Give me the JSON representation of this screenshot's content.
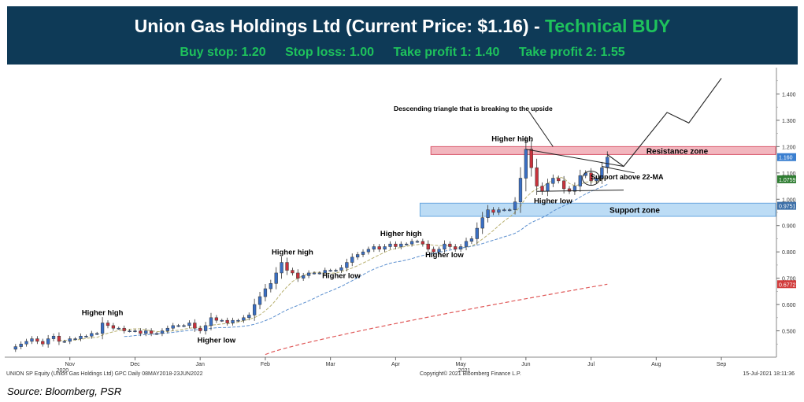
{
  "header": {
    "title_main": "Union Gas Holdings Ltd (Current Price: $1.16) - ",
    "title_signal": "Technical BUY",
    "buy_stop": "Buy stop: 1.20",
    "stop_loss": "Stop loss: 1.00",
    "take_profit_1": "Take profit 1: 1.40",
    "take_profit_2": "Take profit 2: 1.55"
  },
  "source": "Source: Bloomberg, PSR",
  "chart_data": {
    "type": "candlestick",
    "title": "",
    "ylim": [
      0.4,
      1.5
    ],
    "yticks": [
      {
        "v": 0.5,
        "label": "0.500"
      },
      {
        "v": 0.6,
        "label": "0.600"
      },
      {
        "v": 0.7,
        "label": "0.700"
      },
      {
        "v": 0.8,
        "label": "0.800"
      },
      {
        "v": 0.9,
        "label": "0.900"
      },
      {
        "v": 1.0,
        "label": "1.000"
      },
      {
        "v": 1.1,
        "label": "1.100"
      },
      {
        "v": 1.2,
        "label": "1.200"
      },
      {
        "v": 1.3,
        "label": "1.300"
      },
      {
        "v": 1.4,
        "label": "1.400"
      }
    ],
    "xticks": [
      {
        "t": 10,
        "label": "Nov"
      },
      {
        "t": 22,
        "label": "Dec"
      },
      {
        "t": 34,
        "label": "Jan"
      },
      {
        "t": 46,
        "label": "Feb"
      },
      {
        "t": 58,
        "label": "Mar"
      },
      {
        "t": 70,
        "label": "Apr"
      },
      {
        "t": 82,
        "label": "May"
      },
      {
        "t": 94,
        "label": "Jun"
      },
      {
        "t": 106,
        "label": "Jul"
      },
      {
        "t": 118,
        "label": "Aug"
      },
      {
        "t": 130,
        "label": "Sep"
      }
    ],
    "year_labels": [
      {
        "t": 13,
        "label": "2020"
      },
      {
        "t": 87,
        "label": "2021"
      }
    ],
    "x_range": [
      -2,
      140
    ],
    "closes": [
      0.44,
      0.45,
      0.46,
      0.47,
      0.46,
      0.45,
      0.47,
      0.48,
      0.46,
      0.46,
      0.47,
      0.47,
      0.48,
      0.48,
      0.49,
      0.49,
      0.53,
      0.52,
      0.51,
      0.51,
      0.5,
      0.5,
      0.5,
      0.49,
      0.5,
      0.49,
      0.49,
      0.5,
      0.51,
      0.52,
      0.52,
      0.52,
      0.53,
      0.51,
      0.5,
      0.52,
      0.55,
      0.54,
      0.54,
      0.53,
      0.54,
      0.54,
      0.55,
      0.56,
      0.6,
      0.63,
      0.66,
      0.68,
      0.72,
      0.76,
      0.73,
      0.72,
      0.7,
      0.71,
      0.72,
      0.72,
      0.72,
      0.73,
      0.73,
      0.73,
      0.74,
      0.76,
      0.78,
      0.79,
      0.8,
      0.81,
      0.82,
      0.81,
      0.82,
      0.83,
      0.82,
      0.83,
      0.83,
      0.84,
      0.84,
      0.83,
      0.81,
      0.8,
      0.81,
      0.83,
      0.82,
      0.81,
      0.82,
      0.84,
      0.85,
      0.89,
      0.93,
      0.96,
      0.95,
      0.96,
      0.96,
      0.96,
      0.99,
      1.08,
      1.19,
      1.12,
      1.05,
      1.03,
      1.06,
      1.08,
      1.07,
      1.04,
      1.03,
      1.05,
      1.09,
      1.1,
      1.07,
      1.08,
      1.12,
      1.16
    ],
    "support_zone": {
      "low": 0.935,
      "high": 0.985,
      "label": "Support zone"
    },
    "resistance_zone": {
      "low": 1.17,
      "high": 1.2,
      "label": "Resistance zone"
    },
    "price_tags": [
      {
        "v": 1.16,
        "label": "1.160",
        "color": "#3b7fd0"
      },
      {
        "v": 1.0759,
        "label": "1.0759",
        "color": "#2f7d32"
      },
      {
        "v": 0.9751,
        "label": "0.9751",
        "color": "#3c6fa8"
      },
      {
        "v": 0.6772,
        "label": "0.6772",
        "color": "#d23c3c"
      }
    ],
    "annotations": {
      "higher_high_1": "Higher high",
      "higher_low_1": "Higher low",
      "higher_high_2": "Higher high",
      "higher_low_2": "Higher low",
      "higher_high_3": "Higher high",
      "higher_low_3": "Higher low",
      "higher_high_4": "Higher high",
      "higher_low_4": "Higher low",
      "triangle": "Descending triangle that is breaking to the upside",
      "support_ma": "Support above 22-MA"
    },
    "footer_left": "UNION SP Equity (Union Gas Holdings Ltd) GPC  Daily 08MAY2018-23JUN2022",
    "footer_center": "Copyright© 2021 Bloomberg Finance L.P.",
    "footer_right": "15-Jul-2021 18:11:36",
    "colors": {
      "up": "#3a6fc4",
      "down": "#c8323c",
      "ma_short": "#b8b070",
      "ma_mid": "#5b8fcf",
      "ma_long": "#e05a5a"
    }
  }
}
